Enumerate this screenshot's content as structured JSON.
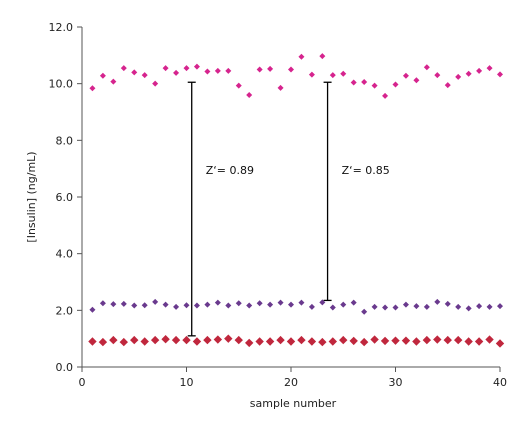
{
  "chart_data": {
    "type": "scatter",
    "xlabel": "sample number",
    "ylabel": "[Insulin] (ng/mL)",
    "xlim": [
      0,
      40
    ],
    "ylim": [
      0,
      12
    ],
    "x_ticks": [
      "0",
      "10",
      "20",
      "30",
      "40"
    ],
    "y_ticks": [
      "0.0",
      "2.0",
      "4.0",
      "6.0",
      "8.0",
      "10.0",
      "12.0"
    ],
    "grid": false,
    "legend": "none",
    "series": [
      {
        "color": "#d6248e",
        "marker": "diamond-small",
        "x": [
          1,
          2,
          3,
          4,
          5,
          6,
          7,
          8,
          9,
          10,
          11,
          12,
          13,
          14,
          15,
          16,
          17,
          18,
          19,
          20,
          21,
          22,
          23,
          24,
          25,
          26,
          27,
          28,
          29,
          30,
          31,
          32,
          33,
          34,
          35,
          36,
          37,
          38,
          39,
          40
        ],
        "y": [
          9.84,
          10.28,
          10.07,
          10.55,
          10.4,
          10.3,
          10.0,
          10.55,
          10.38,
          10.55,
          10.6,
          10.43,
          10.45,
          10.45,
          9.93,
          9.6,
          10.5,
          10.52,
          9.85,
          10.5,
          10.95,
          10.32,
          10.97,
          10.3,
          10.35,
          10.04,
          10.06,
          9.93,
          9.57,
          9.97,
          10.28,
          10.12,
          10.58,
          10.3,
          9.95,
          10.24,
          10.35,
          10.45,
          10.55,
          10.33
        ]
      },
      {
        "color": "#6a3a8e",
        "marker": "diamond-small",
        "x": [
          1,
          2,
          3,
          4,
          5,
          6,
          7,
          8,
          9,
          10,
          11,
          12,
          13,
          14,
          15,
          16,
          17,
          18,
          19,
          20,
          21,
          22,
          23,
          24,
          25,
          26,
          27,
          28,
          29,
          30,
          31,
          32,
          33,
          34,
          35,
          36,
          37,
          38,
          39,
          40
        ],
        "y": [
          2.02,
          2.25,
          2.22,
          2.23,
          2.17,
          2.18,
          2.3,
          2.2,
          2.12,
          2.18,
          2.17,
          2.2,
          2.27,
          2.17,
          2.25,
          2.17,
          2.25,
          2.2,
          2.27,
          2.2,
          2.27,
          2.12,
          2.28,
          2.1,
          2.2,
          2.27,
          1.95,
          2.12,
          2.1,
          2.1,
          2.2,
          2.15,
          2.12,
          2.3,
          2.23,
          2.12,
          2.07,
          2.15,
          2.12,
          2.15
        ]
      },
      {
        "color": "#c0273d",
        "marker": "diamond-large",
        "x": [
          1,
          2,
          3,
          4,
          5,
          6,
          7,
          8,
          9,
          10,
          11,
          12,
          13,
          14,
          15,
          16,
          17,
          18,
          19,
          20,
          21,
          22,
          23,
          24,
          25,
          26,
          27,
          28,
          29,
          30,
          31,
          32,
          33,
          34,
          35,
          36,
          37,
          38,
          39,
          40
        ],
        "y": [
          0.9,
          0.88,
          0.95,
          0.88,
          0.95,
          0.9,
          0.95,
          0.98,
          0.95,
          0.95,
          0.9,
          0.95,
          0.97,
          1.0,
          0.95,
          0.85,
          0.9,
          0.9,
          0.95,
          0.9,
          0.95,
          0.9,
          0.88,
          0.9,
          0.95,
          0.92,
          0.88,
          0.97,
          0.92,
          0.93,
          0.93,
          0.9,
          0.95,
          0.97,
          0.95,
          0.95,
          0.9,
          0.9,
          0.97,
          0.83
        ]
      }
    ],
    "annotations": [
      {
        "label": "Z‘= 0.89",
        "x": 10.5,
        "y_low": 1.1,
        "y_high": 10.05
      },
      {
        "label": "Z‘= 0.85",
        "x": 23.5,
        "y_low": 2.35,
        "y_high": 10.05
      }
    ]
  }
}
